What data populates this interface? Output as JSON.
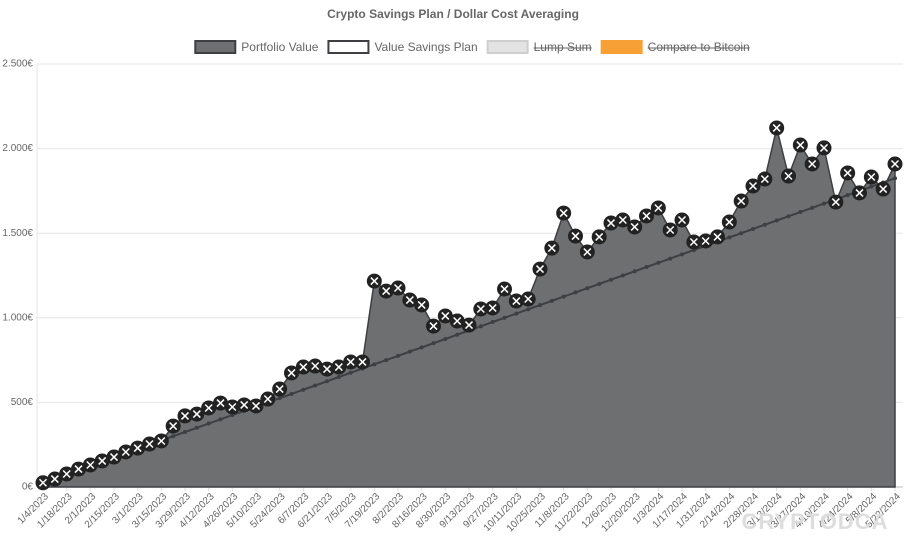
{
  "chart_data": {
    "type": "area",
    "title": "Crypto Savings Plan / Dollar Cost Averaging",
    "watermark": "CRYPTODCA",
    "categories": [
      "1/4/2023",
      null,
      "1/18/2023",
      null,
      "2/1/2023",
      null,
      "2/15/2023",
      null,
      "3/1/2023",
      null,
      "3/15/2023",
      null,
      "3/29/2023",
      null,
      "4/12/2023",
      null,
      "4/26/2023",
      null,
      "5/10/2023",
      null,
      "5/24/2023",
      null,
      "6/7/2023",
      null,
      "6/21/2023",
      null,
      "7/5/2023",
      null,
      "7/19/2023",
      null,
      "8/2/2023",
      null,
      "8/16/2023",
      null,
      "8/30/2023",
      null,
      "9/13/2023",
      null,
      "9/27/2023",
      null,
      "10/11/2023",
      null,
      "10/25/2023",
      null,
      "11/8/2023",
      null,
      "11/22/2023",
      null,
      "12/6/2023",
      null,
      "12/20/2023",
      null,
      "1/3/2024",
      null,
      "1/17/2024",
      null,
      "1/31/2024",
      null,
      "2/14/2024",
      null,
      "2/28/2024",
      null,
      "3/13/2024",
      null,
      "3/27/2024",
      null,
      "4/10/2024",
      null,
      "4/24/2024",
      null,
      "5/8/2024",
      null,
      "5/22/2024"
    ],
    "series": [
      {
        "name": "Portfolio Value",
        "color": "#6d6f71",
        "border": "#3d3f42",
        "values": [
          25,
          47,
          77,
          106,
          130,
          154,
          177,
          207,
          230,
          254,
          272,
          360,
          420,
          431,
          467,
          496,
          473,
          485,
          479,
          520,
          579,
          674,
          709,
          715,
          697,
          709,
          739,
          739,
          1217,
          1158,
          1176,
          1105,
          1076,
          951,
          1011,
          981,
          957,
          1052,
          1058,
          1170,
          1099,
          1111,
          1288,
          1412,
          1619,
          1483,
          1389,
          1478,
          1560,
          1578,
          1537,
          1602,
          1649,
          1519,
          1578,
          1448,
          1454,
          1478,
          1566,
          1690,
          1779,
          1820,
          2122,
          1838,
          2021,
          1909,
          2004,
          1684,
          1856,
          1738,
          1832,
          1761,
          1909
        ]
      },
      {
        "name": "Value Savings Plan",
        "color": "#ffffff",
        "border": "#3d3f42",
        "values": [
          25,
          50,
          75,
          100,
          125,
          150,
          175,
          200,
          225,
          250,
          275,
          300,
          325,
          350,
          375,
          400,
          425,
          450,
          475,
          500,
          525,
          550,
          575,
          600,
          625,
          650,
          675,
          700,
          725,
          750,
          775,
          800,
          825,
          850,
          875,
          900,
          925,
          950,
          975,
          1000,
          1025,
          1050,
          1075,
          1100,
          1125,
          1150,
          1175,
          1200,
          1225,
          1250,
          1275,
          1300,
          1325,
          1350,
          1375,
          1400,
          1425,
          1450,
          1475,
          1500,
          1525,
          1550,
          1575,
          1600,
          1625,
          1650,
          1675,
          1700,
          1725,
          1750,
          1775,
          1800,
          1825
        ]
      },
      {
        "name": "Lump Sum",
        "color": "#e3e3e3",
        "border": "#cfcfcf",
        "hidden": true
      },
      {
        "name": "Compare to Bitcoin",
        "color": "#f7a035",
        "border": "#f7a035",
        "hidden": true
      }
    ],
    "ylim": [
      0,
      2500
    ],
    "yticks": [
      {
        "value": 0,
        "label": "0€"
      },
      {
        "value": 500,
        "label": "500€"
      },
      {
        "value": 1000,
        "label": "1.000€"
      },
      {
        "value": 1500,
        "label": "1.500€"
      },
      {
        "value": 2000,
        "label": "2.000€"
      },
      {
        "value": 2500,
        "label": "2.500€"
      }
    ],
    "grid": true,
    "legend": "top"
  }
}
